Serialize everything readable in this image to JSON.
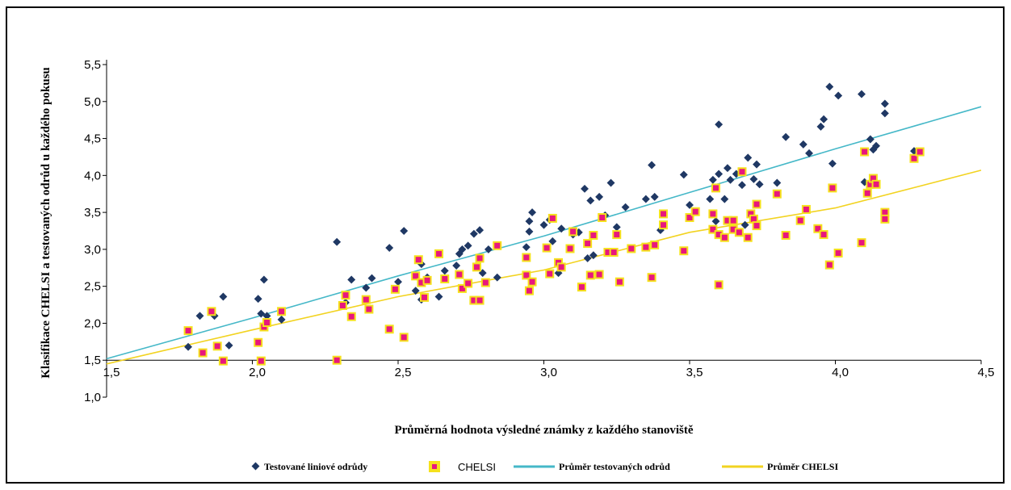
{
  "chart_data": {
    "type": "scatter",
    "xlabel": "Průměrná hodnota výsledné známky z každého stanoviště",
    "ylabel": "Klasifikace CHELSI a testovaných odrůd u každého pokusu",
    "xlim": [
      1.5,
      4.5
    ],
    "ylim": [
      1.0,
      5.5
    ],
    "xticks": [
      "1,5",
      "2,0",
      "2,5",
      "3,0",
      "3,5",
      "4,0",
      "4,5"
    ],
    "yticks": [
      "1,0",
      "1,5",
      "2,0",
      "2,5",
      "3,0",
      "3,5",
      "4,0",
      "4,5",
      "5,0",
      "5,5"
    ],
    "grid": false,
    "legend_position": "bottom",
    "series": [
      {
        "name": "Testované liniové odrůdy",
        "kind": "scatter",
        "marker": "diamond",
        "color": "#1f3864",
        "points": [
          [
            1.78,
            1.68
          ],
          [
            1.82,
            2.1
          ],
          [
            1.87,
            2.1
          ],
          [
            1.9,
            2.36
          ],
          [
            1.92,
            1.7
          ],
          [
            2.02,
            2.33
          ],
          [
            2.03,
            2.13
          ],
          [
            2.04,
            2.59
          ],
          [
            2.05,
            2.1
          ],
          [
            2.1,
            2.05
          ],
          [
            2.29,
            3.1
          ],
          [
            2.32,
            2.28
          ],
          [
            2.34,
            2.59
          ],
          [
            2.39,
            2.48
          ],
          [
            2.41,
            2.61
          ],
          [
            2.47,
            3.02
          ],
          [
            2.5,
            2.56
          ],
          [
            2.52,
            3.25
          ],
          [
            2.56,
            2.44
          ],
          [
            2.58,
            2.8
          ],
          [
            2.58,
            2.32
          ],
          [
            2.6,
            2.62
          ],
          [
            2.64,
            2.36
          ],
          [
            2.66,
            2.71
          ],
          [
            2.7,
            2.78
          ],
          [
            2.71,
            2.94
          ],
          [
            2.72,
            3.0
          ],
          [
            2.74,
            3.05
          ],
          [
            2.76,
            3.21
          ],
          [
            2.78,
            3.26
          ],
          [
            2.79,
            2.68
          ],
          [
            2.81,
            3.0
          ],
          [
            2.84,
            2.62
          ],
          [
            2.94,
            3.03
          ],
          [
            2.95,
            3.24
          ],
          [
            2.95,
            3.38
          ],
          [
            2.96,
            3.5
          ],
          [
            3.0,
            3.33
          ],
          [
            3.02,
            3.4
          ],
          [
            3.03,
            3.11
          ],
          [
            3.05,
            2.68
          ],
          [
            3.06,
            3.28
          ],
          [
            3.1,
            3.2
          ],
          [
            3.12,
            3.23
          ],
          [
            3.14,
            3.82
          ],
          [
            3.15,
            2.88
          ],
          [
            3.16,
            3.66
          ],
          [
            3.17,
            2.92
          ],
          [
            3.19,
            3.71
          ],
          [
            3.21,
            3.46
          ],
          [
            3.23,
            3.9
          ],
          [
            3.25,
            3.3
          ],
          [
            3.28,
            3.57
          ],
          [
            3.35,
            3.68
          ],
          [
            3.37,
            4.14
          ],
          [
            3.38,
            3.71
          ],
          [
            3.4,
            3.26
          ],
          [
            3.48,
            4.01
          ],
          [
            3.5,
            3.6
          ],
          [
            3.57,
            3.68
          ],
          [
            3.58,
            3.94
          ],
          [
            3.59,
            3.38
          ],
          [
            3.6,
            4.02
          ],
          [
            3.6,
            4.69
          ],
          [
            3.62,
            3.68
          ],
          [
            3.63,
            4.1
          ],
          [
            3.64,
            3.94
          ],
          [
            3.66,
            4.02
          ],
          [
            3.68,
            3.87
          ],
          [
            3.69,
            3.33
          ],
          [
            3.7,
            4.24
          ],
          [
            3.72,
            3.95
          ],
          [
            3.73,
            4.15
          ],
          [
            3.74,
            3.88
          ],
          [
            3.8,
            3.9
          ],
          [
            3.83,
            4.52
          ],
          [
            3.89,
            4.42
          ],
          [
            3.91,
            4.3
          ],
          [
            3.95,
            4.66
          ],
          [
            3.96,
            4.76
          ],
          [
            3.98,
            5.2
          ],
          [
            3.99,
            4.16
          ],
          [
            4.01,
            5.08
          ],
          [
            4.09,
            5.1
          ],
          [
            4.1,
            3.91
          ],
          [
            4.12,
            4.49
          ],
          [
            4.13,
            4.35
          ],
          [
            4.14,
            4.4
          ],
          [
            4.17,
            4.97
          ],
          [
            4.17,
            4.84
          ],
          [
            4.27,
            4.33
          ]
        ]
      },
      {
        "name": "CHELSI",
        "kind": "scatter",
        "marker": "square",
        "color": "#e8177d",
        "edge_color": "#f5e11c",
        "points": [
          [
            1.78,
            1.9
          ],
          [
            1.83,
            1.6
          ],
          [
            1.86,
            2.16
          ],
          [
            1.88,
            1.69
          ],
          [
            1.9,
            1.49
          ],
          [
            2.02,
            1.74
          ],
          [
            2.03,
            1.49
          ],
          [
            2.04,
            1.95
          ],
          [
            2.05,
            2.01
          ],
          [
            2.1,
            2.16
          ],
          [
            2.29,
            1.5
          ],
          [
            2.31,
            2.24
          ],
          [
            2.32,
            2.38
          ],
          [
            2.34,
            2.09
          ],
          [
            2.39,
            2.32
          ],
          [
            2.4,
            2.19
          ],
          [
            2.47,
            1.92
          ],
          [
            2.49,
            2.46
          ],
          [
            2.52,
            1.81
          ],
          [
            2.56,
            2.64
          ],
          [
            2.57,
            2.86
          ],
          [
            2.58,
            2.55
          ],
          [
            2.59,
            2.35
          ],
          [
            2.6,
            2.58
          ],
          [
            2.64,
            2.94
          ],
          [
            2.66,
            2.6
          ],
          [
            2.71,
            2.66
          ],
          [
            2.72,
            2.47
          ],
          [
            2.74,
            2.54
          ],
          [
            2.76,
            2.31
          ],
          [
            2.77,
            2.76
          ],
          [
            2.78,
            2.88
          ],
          [
            2.78,
            2.31
          ],
          [
            2.8,
            2.55
          ],
          [
            2.84,
            3.05
          ],
          [
            2.94,
            2.89
          ],
          [
            2.94,
            2.65
          ],
          [
            2.95,
            2.44
          ],
          [
            2.96,
            2.56
          ],
          [
            3.01,
            3.02
          ],
          [
            3.02,
            2.67
          ],
          [
            3.03,
            3.42
          ],
          [
            3.05,
            2.82
          ],
          [
            3.06,
            2.76
          ],
          [
            3.09,
            3.01
          ],
          [
            3.1,
            3.24
          ],
          [
            3.13,
            2.49
          ],
          [
            3.15,
            3.08
          ],
          [
            3.16,
            2.65
          ],
          [
            3.17,
            3.19
          ],
          [
            3.19,
            2.66
          ],
          [
            3.2,
            3.43
          ],
          [
            3.22,
            2.96
          ],
          [
            3.24,
            2.96
          ],
          [
            3.25,
            3.2
          ],
          [
            3.26,
            2.56
          ],
          [
            3.3,
            3.01
          ],
          [
            3.35,
            3.03
          ],
          [
            3.37,
            2.62
          ],
          [
            3.38,
            3.06
          ],
          [
            3.41,
            3.48
          ],
          [
            3.41,
            3.33
          ],
          [
            3.48,
            2.98
          ],
          [
            3.5,
            3.43
          ],
          [
            3.52,
            3.51
          ],
          [
            3.58,
            3.48
          ],
          [
            3.58,
            3.27
          ],
          [
            3.59,
            3.83
          ],
          [
            3.6,
            3.2
          ],
          [
            3.6,
            2.52
          ],
          [
            3.62,
            3.16
          ],
          [
            3.63,
            3.39
          ],
          [
            3.65,
            3.39
          ],
          [
            3.65,
            3.27
          ],
          [
            3.67,
            3.23
          ],
          [
            3.68,
            4.05
          ],
          [
            3.7,
            3.16
          ],
          [
            3.71,
            3.48
          ],
          [
            3.72,
            3.41
          ],
          [
            3.73,
            3.61
          ],
          [
            3.73,
            3.32
          ],
          [
            3.8,
            3.75
          ],
          [
            3.83,
            3.19
          ],
          [
            3.88,
            3.39
          ],
          [
            3.9,
            3.54
          ],
          [
            3.94,
            3.28
          ],
          [
            3.96,
            3.2
          ],
          [
            3.98,
            2.79
          ],
          [
            3.99,
            3.83
          ],
          [
            4.01,
            2.95
          ],
          [
            4.09,
            3.09
          ],
          [
            4.1,
            4.32
          ],
          [
            4.11,
            3.76
          ],
          [
            4.12,
            3.88
          ],
          [
            4.13,
            3.96
          ],
          [
            4.14,
            3.88
          ],
          [
            4.17,
            3.5
          ],
          [
            4.17,
            3.41
          ],
          [
            4.27,
            4.23
          ],
          [
            4.29,
            4.32
          ]
        ]
      },
      {
        "name": "Průměr testovaných odrůd",
        "kind": "line",
        "color": "#45b8c8",
        "points": [
          [
            1.5,
            1.52
          ],
          [
            2.0,
            2.07
          ],
          [
            2.5,
            2.64
          ],
          [
            3.0,
            3.18
          ],
          [
            3.5,
            3.77
          ],
          [
            4.0,
            4.36
          ],
          [
            4.5,
            4.93
          ]
        ]
      },
      {
        "name": "Průměr CHELSI",
        "kind": "line",
        "color": "#f2d320",
        "points": [
          [
            1.5,
            1.45
          ],
          [
            2.0,
            1.91
          ],
          [
            2.5,
            2.36
          ],
          [
            3.0,
            2.72
          ],
          [
            3.5,
            3.23
          ],
          [
            4.0,
            3.56
          ],
          [
            4.5,
            4.07
          ]
        ]
      }
    ]
  }
}
